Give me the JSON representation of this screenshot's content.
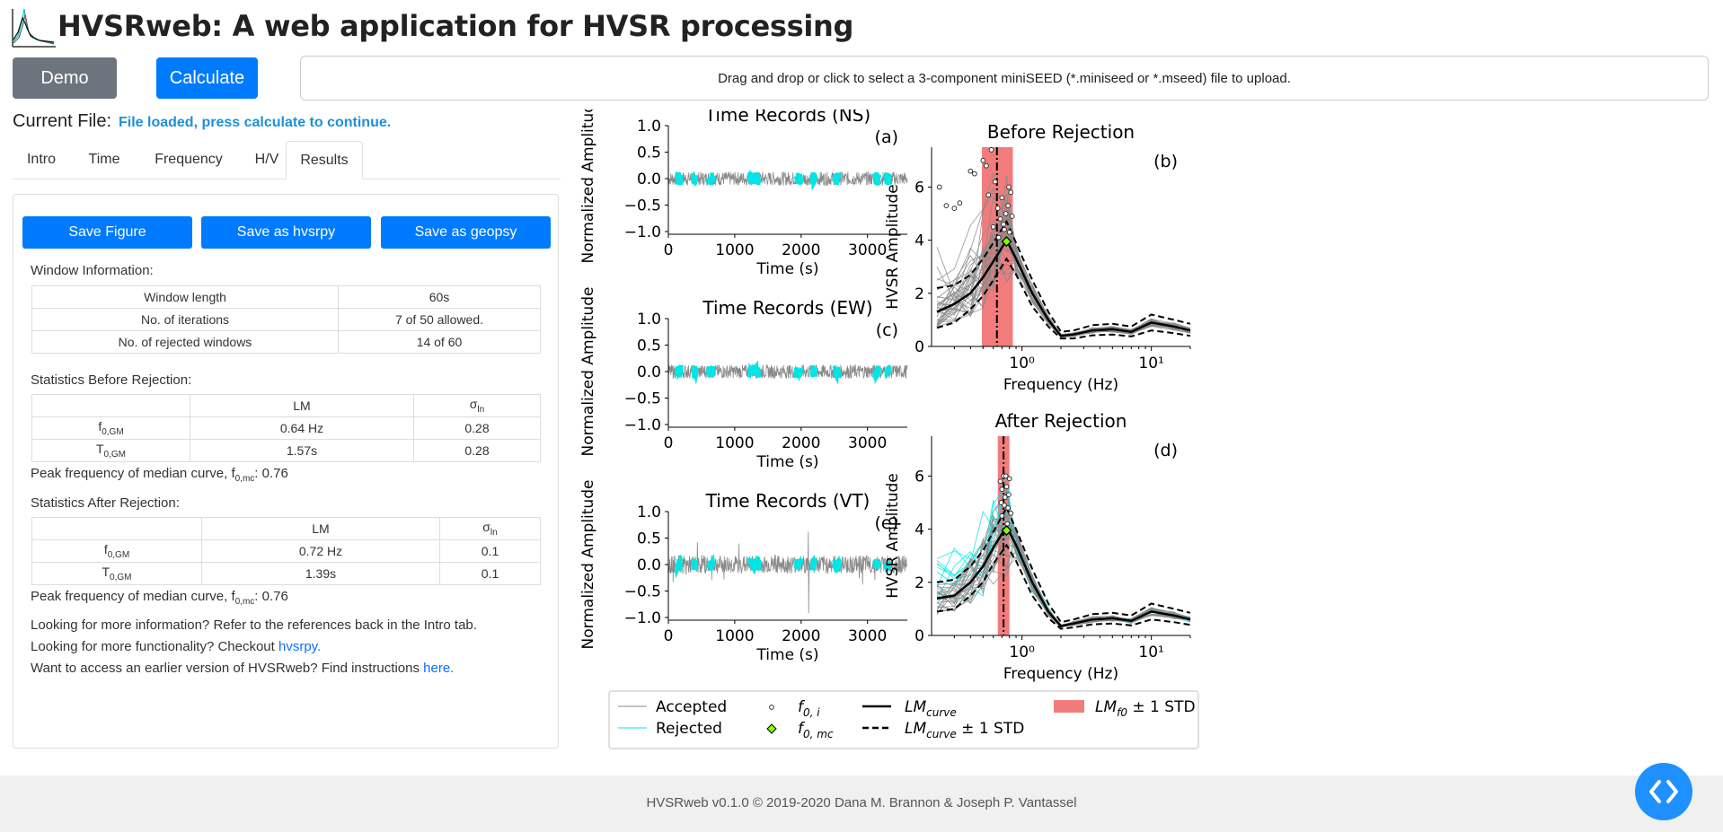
{
  "header": {
    "title": "HVSRweb: A web application for HVSR processing",
    "logo_icon": "hvsr-curves-logo-icon"
  },
  "toolbar": {
    "demo_label": "Demo",
    "calculate_label": "Calculate"
  },
  "upload": {
    "text": "Drag and drop or click to select a 3-component miniSEED (*.miniseed or *.mseed) file to upload."
  },
  "current_file": {
    "label": "Current File:",
    "status": "File loaded, press calculate to continue."
  },
  "tabs": [
    {
      "label": "Intro",
      "active": false
    },
    {
      "label": "Time",
      "active": false
    },
    {
      "label": "Frequency",
      "active": false
    },
    {
      "label": "H/V",
      "active": false
    },
    {
      "label": "Results",
      "active": true
    }
  ],
  "results": {
    "buttons": {
      "save_figure": "Save Figure",
      "save_hvsrpy": "Save as hvsrpy",
      "save_geopsy": "Save as geopsy"
    },
    "window_info": {
      "heading": "Window Information:",
      "rows": [
        {
          "label": "Window length",
          "value": "60s"
        },
        {
          "label": "No. of iterations",
          "value": "7 of 50 allowed."
        },
        {
          "label": "No. of rejected windows",
          "value": "14 of 60"
        }
      ]
    },
    "stats_before": {
      "heading": "Statistics Before Rejection:",
      "col_lm": "LM",
      "col_sigma": "σ",
      "col_sigma_sub": "ln",
      "rows": [
        {
          "label": "f",
          "label_sub": "0,GM",
          "lm": "0.64 Hz",
          "sigma": "0.28"
        },
        {
          "label": "T",
          "label_sub": "0,GM",
          "lm": "1.57s",
          "sigma": "0.28"
        }
      ],
      "peak_prefix": "Peak frequency of median curve, f",
      "peak_sub": "0,mc",
      "peak_value": ": 0.76"
    },
    "stats_after": {
      "heading": "Statistics After Rejection:",
      "col_lm": "LM",
      "col_sigma": "σ",
      "col_sigma_sub": "ln",
      "rows": [
        {
          "label": "f",
          "label_sub": "0,GM",
          "lm": "0.72 Hz",
          "sigma": "0.1"
        },
        {
          "label": "T",
          "label_sub": "0,GM",
          "lm": "1.39s",
          "sigma": "0.1"
        }
      ],
      "peak_prefix": "Peak frequency of median curve, f",
      "peak_sub": "0,mc",
      "peak_value": ": 0.76"
    },
    "notes": {
      "line1": "Looking for more information? Refer to the references back in the Intro tab.",
      "line2_prefix": "Looking for more functionality? Checkout ",
      "line2_link": "hvsrpy.",
      "line3_prefix": "Want to access an earlier version of HVSRweb? Find instructions ",
      "line3_link": "here."
    }
  },
  "footer": {
    "text": "HVSRweb v0.1.0 © 2019-2020 Dana M. Brannon & Joseph P. Vantassel",
    "toggle_icon": "code-brackets-icon"
  },
  "colors": {
    "accepted": "#8a8a8a",
    "rejected": "#00e5e5",
    "std_band": "#f27c7c",
    "primary": "#007bff",
    "secondary": "#6c757d",
    "status": "#1e90d8"
  },
  "chart_data": [
    {
      "type": "line",
      "panel": "(a)",
      "title": "Time Records (NS)",
      "xlabel": "Time (s)",
      "ylabel": "Normalized Amplitude",
      "xlim": [
        0,
        3600
      ],
      "ylim": [
        -1.0,
        1.0
      ],
      "xticks": [
        "0",
        "1000",
        "2000",
        "3000"
      ],
      "yticks": [
        "1.0",
        "0.5",
        "0.0",
        "−0.5",
        "−1.0"
      ],
      "rejected_segments": [
        [
          120,
          200
        ],
        [
          370,
          420
        ],
        [
          600,
          680
        ],
        [
          1220,
          1290
        ],
        [
          1310,
          1370
        ],
        [
          1920,
          2010
        ],
        [
          2160,
          2220
        ],
        [
          2500,
          2580
        ],
        [
          3100,
          3180
        ],
        [
          3280,
          3330
        ]
      ]
    },
    {
      "type": "line",
      "panel": "(c)",
      "title": "Time Records (EW)",
      "xlabel": "Time (s)",
      "ylabel": "Normalized Amplitude",
      "xlim": [
        0,
        3600
      ],
      "ylim": [
        -1.0,
        1.0
      ],
      "xticks": [
        "0",
        "1000",
        "2000",
        "3000"
      ],
      "yticks": [
        "1.0",
        "0.5",
        "0.0",
        "−0.5",
        "−1.0"
      ],
      "rejected_segments": [
        [
          120,
          200
        ],
        [
          370,
          420
        ],
        [
          600,
          680
        ],
        [
          1220,
          1290
        ],
        [
          1310,
          1370
        ],
        [
          1920,
          2010
        ],
        [
          2160,
          2220
        ],
        [
          2500,
          2580
        ],
        [
          3100,
          3180
        ],
        [
          3280,
          3330
        ]
      ]
    },
    {
      "type": "line",
      "panel": "(e)",
      "title": "Time Records (VT)",
      "xlabel": "Time (s)",
      "ylabel": "Normalized Amplitude",
      "xlim": [
        0,
        3600
      ],
      "ylim": [
        -1.0,
        1.0
      ],
      "xticks": [
        "0",
        "1000",
        "2000",
        "3000"
      ],
      "yticks": [
        "1.0",
        "0.5",
        "0.0",
        "−0.5",
        "−1.0"
      ],
      "rejected_segments": [
        [
          120,
          200
        ],
        [
          370,
          420
        ],
        [
          600,
          680
        ],
        [
          1220,
          1290
        ],
        [
          1310,
          1370
        ],
        [
          1920,
          2010
        ],
        [
          2160,
          2220
        ],
        [
          2500,
          2580
        ],
        [
          3100,
          3180
        ],
        [
          3280,
          3330
        ]
      ]
    },
    {
      "type": "line",
      "panel": "(b)",
      "title": "Before Rejection",
      "xlabel": "Frequency (Hz)",
      "ylabel": "HVSR Amplitude",
      "x_scale": "log",
      "xlim": [
        0.2,
        20
      ],
      "ylim": [
        0,
        7.5
      ],
      "xticks": [
        "10⁰",
        "10¹"
      ],
      "yticks": [
        "0",
        "2",
        "4",
        "6"
      ],
      "freq": [
        0.22,
        0.3,
        0.4,
        0.5,
        0.6,
        0.76,
        0.9,
        1.2,
        1.6,
        2.0,
        2.5,
        3.5,
        5,
        7,
        10,
        15,
        20
      ],
      "lm_curve": [
        1.3,
        1.6,
        2.0,
        2.6,
        3.2,
        4.0,
        3.3,
        2.0,
        1.0,
        0.4,
        0.45,
        0.6,
        0.65,
        0.55,
        0.9,
        0.75,
        0.6
      ],
      "lm_curve_plus": [
        2.2,
        2.3,
        2.7,
        3.3,
        3.9,
        4.7,
        3.9,
        2.5,
        1.3,
        0.55,
        0.6,
        0.8,
        0.85,
        0.75,
        1.2,
        1.0,
        0.85
      ],
      "lm_curve_minus": [
        0.7,
        0.9,
        1.4,
        1.9,
        2.5,
        3.3,
        2.7,
        1.5,
        0.75,
        0.3,
        0.3,
        0.42,
        0.45,
        0.38,
        0.6,
        0.5,
        0.4
      ],
      "lm_f0": 0.64,
      "lm_f0_std_band": [
        0.49,
        0.85
      ],
      "f0_mc": [
        0.76,
        3.95
      ],
      "f0_i": [
        [
          0.23,
          6.0
        ],
        [
          0.26,
          5.3
        ],
        [
          0.3,
          5.2
        ],
        [
          0.33,
          5.4
        ],
        [
          0.4,
          6.6
        ],
        [
          0.43,
          6.5
        ],
        [
          0.5,
          7.0
        ],
        [
          0.53,
          6.8
        ],
        [
          0.58,
          7.4
        ],
        [
          0.62,
          6.2
        ],
        [
          0.65,
          5.2
        ],
        [
          0.68,
          4.8
        ],
        [
          0.7,
          5.6
        ],
        [
          0.72,
          4.6
        ],
        [
          0.75,
          5.0
        ],
        [
          0.78,
          5.3
        ],
        [
          0.8,
          4.3
        ],
        [
          0.82,
          5.8
        ],
        [
          0.6,
          4.5
        ],
        [
          0.66,
          4.1
        ],
        [
          0.73,
          4.4
        ],
        [
          0.79,
          6.0
        ],
        [
          0.55,
          5.7
        ],
        [
          0.84,
          4.9
        ]
      ]
    },
    {
      "type": "line",
      "panel": "(d)",
      "title": "After Rejection",
      "xlabel": "Frequency (Hz)",
      "ylabel": "HVSR Amplitude",
      "x_scale": "log",
      "xlim": [
        0.2,
        20
      ],
      "ylim": [
        0,
        7.5
      ],
      "xticks": [
        "10⁰",
        "10¹"
      ],
      "yticks": [
        "0",
        "2",
        "4",
        "6"
      ],
      "freq": [
        0.22,
        0.3,
        0.4,
        0.5,
        0.6,
        0.76,
        0.9,
        1.2,
        1.6,
        2.0,
        2.5,
        3.5,
        5,
        7,
        10,
        15,
        20
      ],
      "lm_curve": [
        1.4,
        1.5,
        2.0,
        2.6,
        3.3,
        4.1,
        3.4,
        2.0,
        0.9,
        0.35,
        0.45,
        0.6,
        0.65,
        0.55,
        0.9,
        0.75,
        0.6
      ],
      "lm_curve_plus": [
        2.0,
        2.1,
        2.6,
        3.2,
        3.9,
        4.8,
        4.0,
        2.5,
        1.2,
        0.5,
        0.6,
        0.8,
        0.85,
        0.75,
        1.2,
        1.0,
        0.85
      ],
      "lm_curve_minus": [
        0.9,
        1.0,
        1.5,
        2.0,
        2.7,
        3.4,
        2.8,
        1.5,
        0.65,
        0.25,
        0.3,
        0.42,
        0.45,
        0.38,
        0.6,
        0.5,
        0.4
      ],
      "lm_f0": 0.72,
      "lm_f0_std_band": [
        0.65,
        0.8
      ],
      "f0_mc": [
        0.76,
        3.95
      ],
      "f0_i": [
        [
          0.68,
          5.8
        ],
        [
          0.7,
          5.5
        ],
        [
          0.72,
          6.0
        ],
        [
          0.74,
          5.2
        ],
        [
          0.76,
          5.6
        ],
        [
          0.78,
          4.8
        ],
        [
          0.8,
          5.9
        ],
        [
          0.7,
          4.5
        ],
        [
          0.73,
          4.9
        ],
        [
          0.75,
          6.0
        ],
        [
          0.79,
          5.3
        ],
        [
          0.82,
          4.6
        ],
        [
          0.69,
          5.0
        ],
        [
          0.77,
          4.2
        ]
      ]
    }
  ],
  "legend": {
    "accepted": "Accepted",
    "rejected": "Rejected",
    "f0i": "f",
    "f0i_sub": "0, i",
    "f0mc": "f",
    "f0mc_sub": "0, mc",
    "lmcurve": "LM",
    "lmcurve_sub": "curve",
    "lmcurve_std_suffix": " ± 1 STD",
    "lmf0": "LM",
    "lmf0_sub": "f0",
    "lmf0_suffix": " ± 1 STD"
  }
}
